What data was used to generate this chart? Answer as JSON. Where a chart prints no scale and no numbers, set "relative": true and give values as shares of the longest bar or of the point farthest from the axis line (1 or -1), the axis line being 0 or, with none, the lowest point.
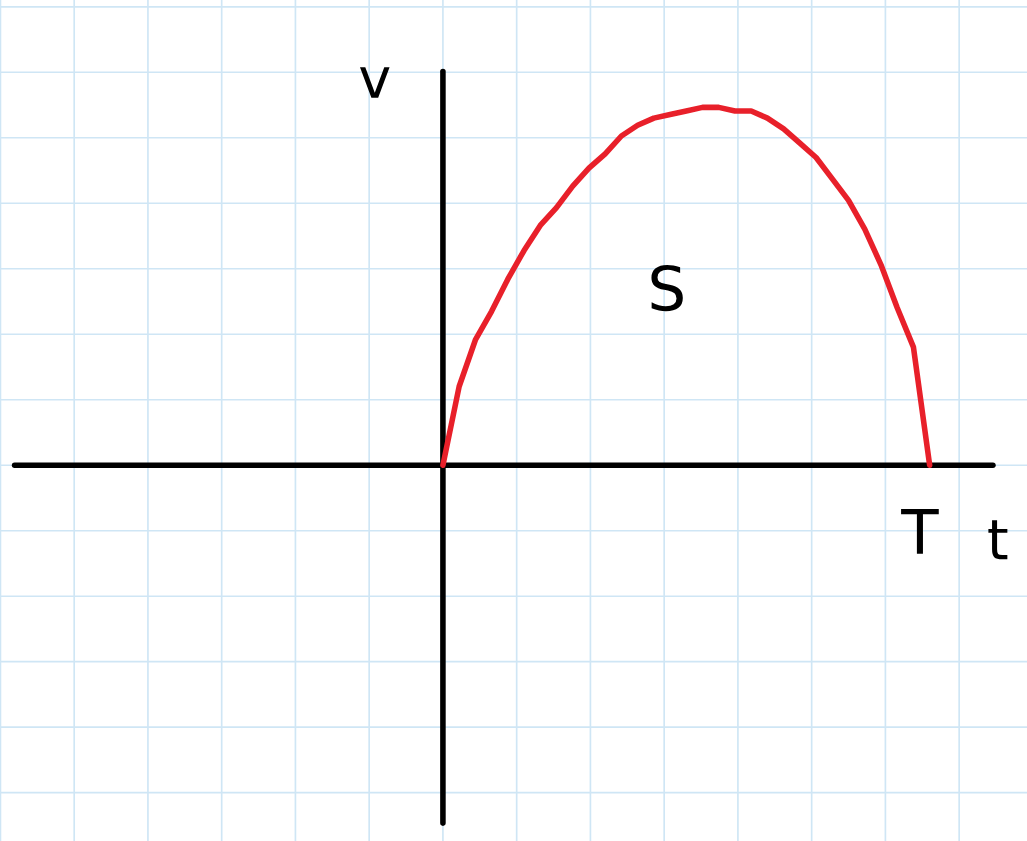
{
  "chart_data": {
    "type": "line",
    "relative": true,
    "xlabel": "t",
    "ylabel": "v",
    "annotations": [
      "S",
      "T"
    ],
    "categories": [
      null,
      null,
      null,
      null,
      null,
      null,
      null,
      null,
      null,
      null,
      null,
      null,
      null,
      null,
      null,
      null,
      null,
      null,
      null,
      null,
      null,
      null,
      null,
      null,
      null,
      null,
      null,
      null,
      null,
      null,
      null
    ],
    "series": [
      {
        "color": "#e8202a",
        "values": [
          0,
          0.22,
          0.35,
          0.43,
          0.52,
          0.6,
          0.67,
          0.72,
          0.78,
          0.83,
          0.87,
          0.92,
          0.95,
          0.97,
          0.98,
          0.99,
          1.0,
          1.0,
          0.99,
          0.99,
          0.97,
          0.94,
          0.9,
          0.86,
          0.8,
          0.74,
          0.66,
          0.56,
          0.44,
          0.33,
          0
        ]
      }
    ],
    "grid": true,
    "marker": "none",
    "line_style": "solid",
    "legend": false
  }
}
